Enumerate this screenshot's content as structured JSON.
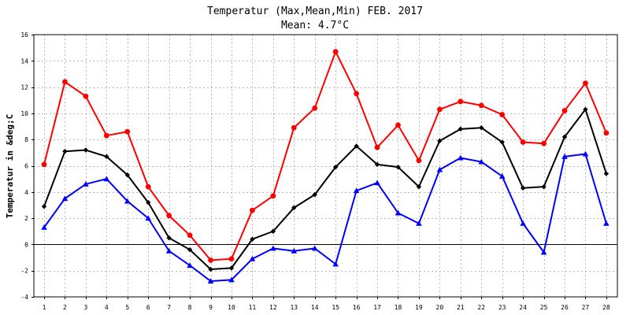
{
  "chart_data": {
    "type": "line",
    "title": "Temperatur (Max,Mean,Min) FEB. 2017",
    "subtitle": "Mean: 4.7°C",
    "xlabel": "",
    "ylabel": "Temperatur in &deg;C",
    "ylim": [
      -4,
      16
    ],
    "yticks": [
      -4,
      -2,
      0,
      2,
      4,
      6,
      8,
      10,
      12,
      14,
      16
    ],
    "grid": true,
    "zero_line": true,
    "categories": [
      "1",
      "2",
      "3",
      "4",
      "5",
      "6",
      "7",
      "8",
      "9",
      "10",
      "11",
      "12",
      "13",
      "14",
      "15",
      "16",
      "17",
      "18",
      "19",
      "20",
      "21",
      "22",
      "23",
      "24",
      "25",
      "26",
      "27",
      "28"
    ],
    "series": [
      {
        "key": "max",
        "color": "#ff0000",
        "marker": "circle",
        "values": [
          6.1,
          12.4,
          11.3,
          8.3,
          8.6,
          4.4,
          2.2,
          0.7,
          -1.2,
          -1.1,
          2.6,
          3.7,
          8.9,
          10.4,
          14.7,
          11.5,
          7.4,
          9.1,
          6.4,
          10.3,
          10.9,
          10.6,
          9.9,
          7.8,
          7.7,
          10.2,
          12.3,
          8.5
        ]
      },
      {
        "key": "mean",
        "color": "#000000",
        "marker": "diamond",
        "values": [
          2.9,
          7.1,
          7.2,
          6.7,
          5.3,
          3.2,
          0.5,
          -0.4,
          -1.9,
          -1.8,
          0.4,
          1.0,
          2.8,
          3.8,
          5.9,
          7.5,
          6.1,
          5.9,
          4.4,
          7.9,
          8.8,
          8.9,
          7.8,
          4.3,
          4.4,
          8.2,
          10.3,
          5.4
        ]
      },
      {
        "key": "min",
        "color": "#0000ff",
        "marker": "triangle",
        "values": [
          1.3,
          3.5,
          4.6,
          5.0,
          3.3,
          2.0,
          -0.5,
          -1.6,
          -2.8,
          -2.7,
          -1.1,
          -0.3,
          -0.5,
          -0.3,
          -1.5,
          4.1,
          4.7,
          2.4,
          1.6,
          5.7,
          6.6,
          6.3,
          5.2,
          1.6,
          -0.6,
          6.7,
          6.9,
          1.6
        ]
      }
    ]
  }
}
